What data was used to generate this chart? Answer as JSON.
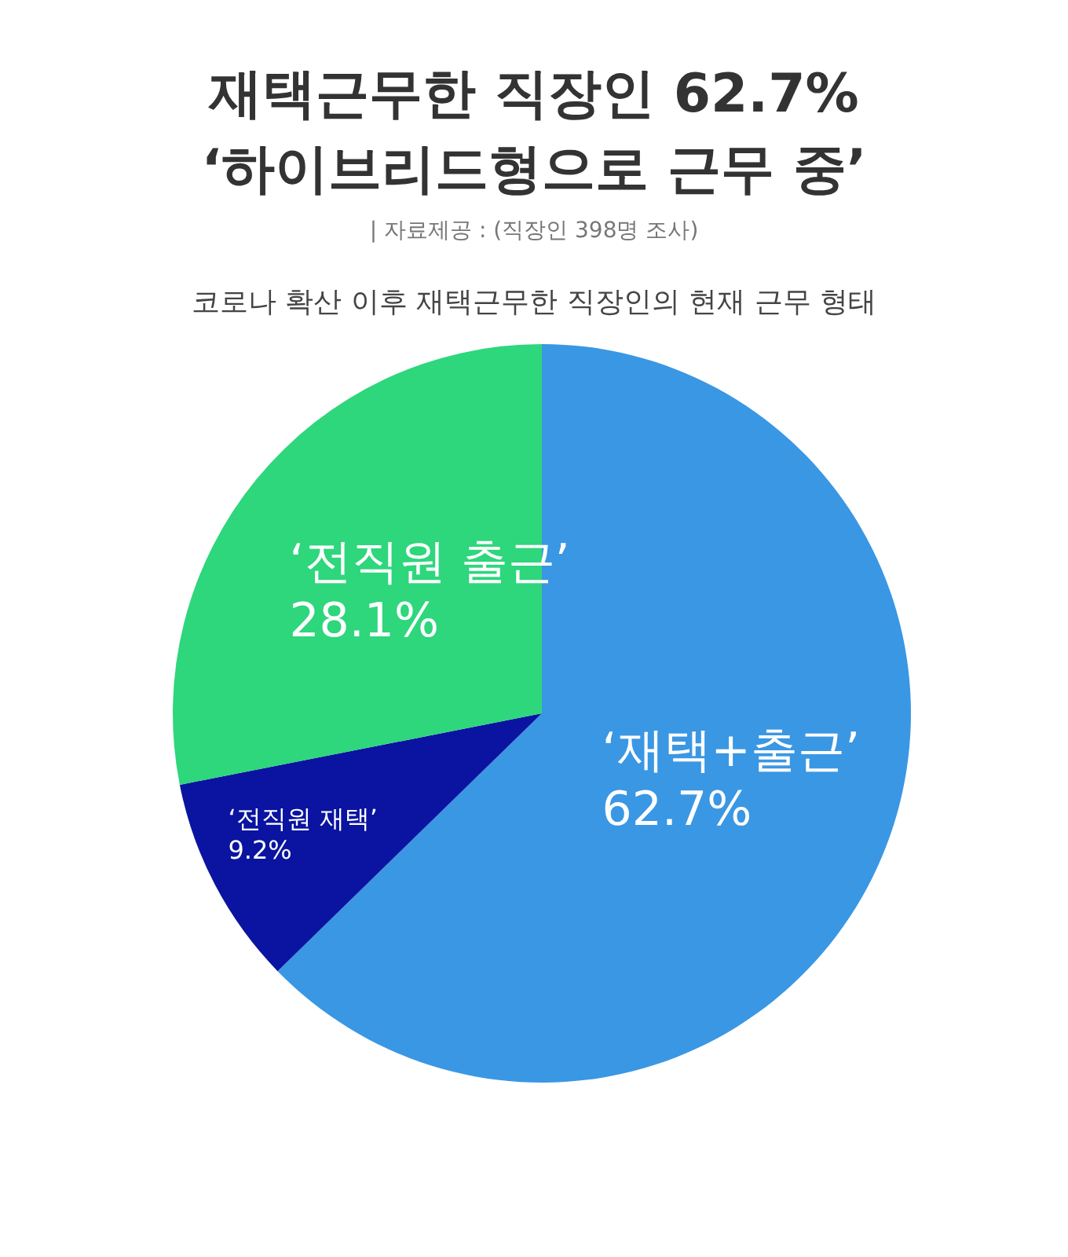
{
  "chart_data": {
    "type": "pie",
    "title": "재택근무한 직장인 62.7%\n‘하이브리드형으로 근무 중’",
    "subtitle": "코로나 확산 이후 재택근무한 직장인의 현재 근무 형태",
    "annotations": [
      "| 자료제공 : (직장인 398명 조사)"
    ],
    "categories": [
      "‘재택+출근’",
      "‘전직원 재택’",
      "‘전직원 출근’"
    ],
    "values": [
      62.7,
      9.2,
      28.1
    ],
    "colors": [
      "#3a97e4",
      "#0a14a0",
      "#2ed67c"
    ],
    "value_labels": [
      "62.7%",
      "9.2%",
      "28.1%"
    ],
    "legend": false
  }
}
